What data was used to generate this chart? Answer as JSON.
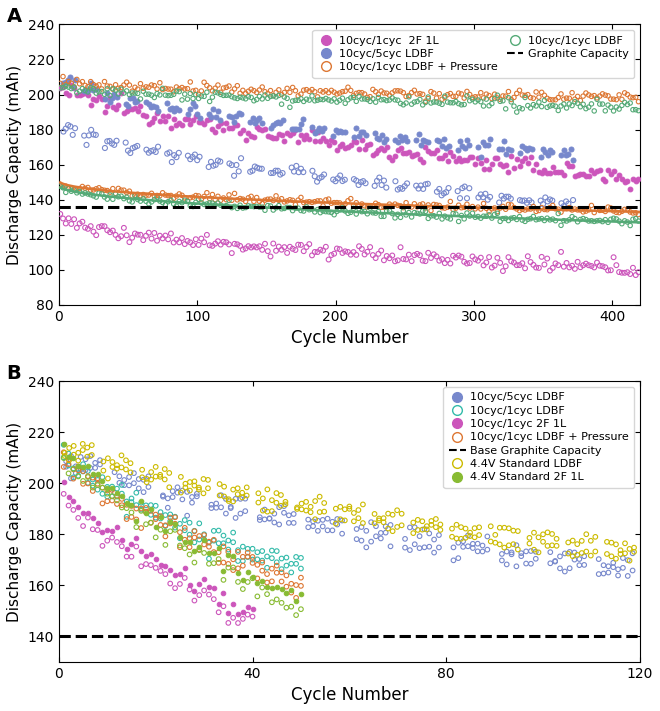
{
  "panel_A": {
    "xlim": [
      0,
      420
    ],
    "ylim": [
      80,
      240
    ],
    "yticks": [
      80,
      100,
      120,
      140,
      160,
      180,
      200,
      220,
      240
    ],
    "xticks": [
      0,
      100,
      200,
      300,
      400
    ],
    "graphite_capacity": 136,
    "xlabel": "Cycle Number",
    "ylabel": "Discharge Capacity (mAh)",
    "label": "A"
  },
  "panel_B": {
    "xlim": [
      0,
      120
    ],
    "ylim": [
      130,
      240
    ],
    "yticks": [
      140,
      160,
      180,
      200,
      220,
      240
    ],
    "xticks": [
      0,
      40,
      80,
      120
    ],
    "graphite_capacity": 140,
    "xlabel": "Cycle Number",
    "ylabel": "Discharge Capacity (mAh)",
    "label": "B"
  },
  "colors": {
    "magenta": "#cc55bb",
    "blue": "#7788cc",
    "orange": "#dd7733",
    "teal": "#55aa77",
    "yellow": "#ccbb00",
    "lime": "#88bb33"
  }
}
